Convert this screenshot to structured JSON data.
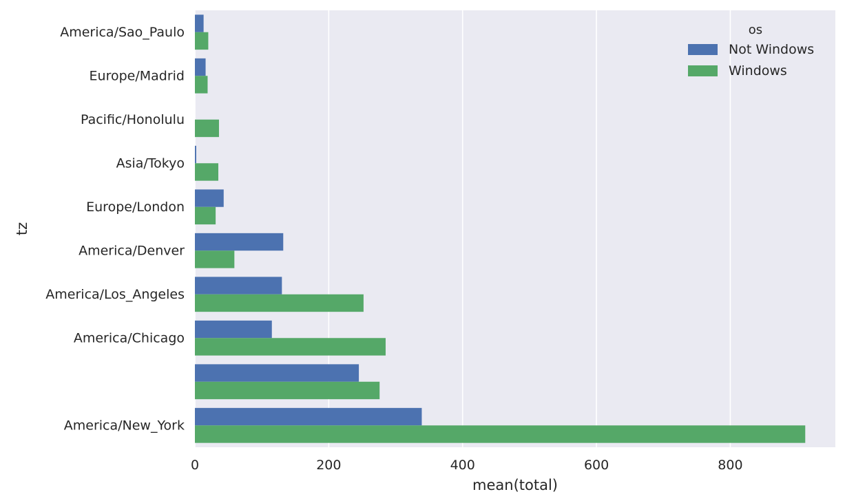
{
  "chart_data": {
    "type": "bar",
    "orientation": "horizontal",
    "categories": [
      "America/Sao_Paulo",
      "Europe/Madrid",
      "Pacific/Honolulu",
      "Asia/Tokyo",
      "Europe/London",
      "America/Denver",
      "America/Los_Angeles",
      "America/Chicago",
      "",
      "America/New_York"
    ],
    "series": [
      {
        "name": "Not Windows",
        "color": "#4c72b0",
        "values": [
          13,
          16,
          0,
          2,
          43,
          132,
          130,
          115,
          245,
          339
        ]
      },
      {
        "name": "Windows",
        "color": "#55a868",
        "values": [
          20,
          19,
          36,
          35,
          31,
          59,
          252,
          285,
          276,
          912
        ]
      }
    ],
    "xlabel": "mean(total)",
    "ylabel": "tz",
    "xlim": [
      0,
      957
    ],
    "xticks": [
      0,
      200,
      400,
      600,
      800
    ],
    "legend": {
      "title": "os",
      "placement": "top-right"
    },
    "grid": true,
    "background": "#eaeaf2"
  }
}
